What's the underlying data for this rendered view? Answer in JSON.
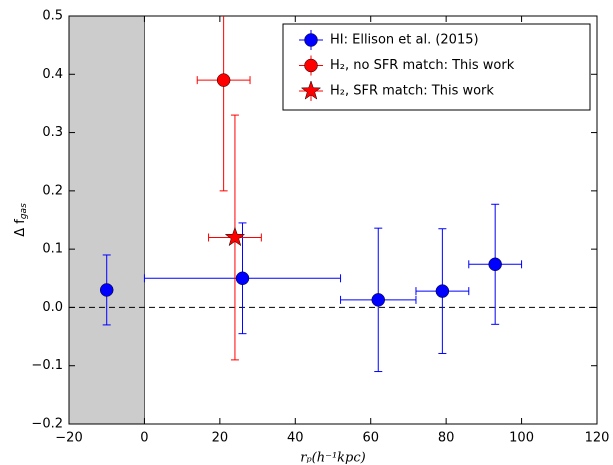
{
  "chart_data": {
    "type": "errorbar",
    "xlabel": "rₚ(h⁻¹kpc)",
    "ylabel": [
      "Δ f",
      "gas"
    ],
    "xlim": [
      -20,
      120
    ],
    "xticks": [
      {
        "value": -20,
        "label": "−20"
      },
      0,
      20,
      40,
      60,
      80,
      100,
      120
    ],
    "ylim": [
      -0.2,
      0.5
    ],
    "yticks": [
      {
        "value": -0.2,
        "label": "−0.2"
      },
      {
        "value": -0.1,
        "label": "−0.1"
      },
      {
        "value": 0,
        "label": "0.0"
      },
      0.1,
      0.2,
      0.3,
      0.4,
      0.5
    ],
    "shaded_xspan": [
      -20,
      0
    ],
    "shade_color": "#cccccc",
    "hline": 0,
    "legend": "upper right",
    "series": [
      {
        "name": "HI: Ellison et al. (2015)",
        "color": "#0000ff",
        "marker": "o",
        "x": [
          -10,
          26,
          62,
          79,
          93
        ],
        "values": [
          0.03,
          0.05,
          0.013,
          0.028,
          0.074
        ],
        "xerr": [
          null,
          26,
          10,
          7,
          7
        ],
        "yerr": [
          0.06,
          0.095,
          0.123,
          0.107,
          0.103
        ]
      },
      {
        "name": "H₂, no SFR match: This work",
        "color": "#ff0000",
        "marker": "o",
        "x": [
          21
        ],
        "values": [
          0.39
        ],
        "xerr": [
          7
        ],
        "yerr": [
          0.19
        ]
      },
      {
        "name": "H₂, SFR match: This work",
        "color": "#ff0000",
        "marker": "*",
        "x": [
          24
        ],
        "values": [
          0.12
        ],
        "xerr": [
          7
        ],
        "yerr": [
          0.21
        ]
      }
    ]
  }
}
